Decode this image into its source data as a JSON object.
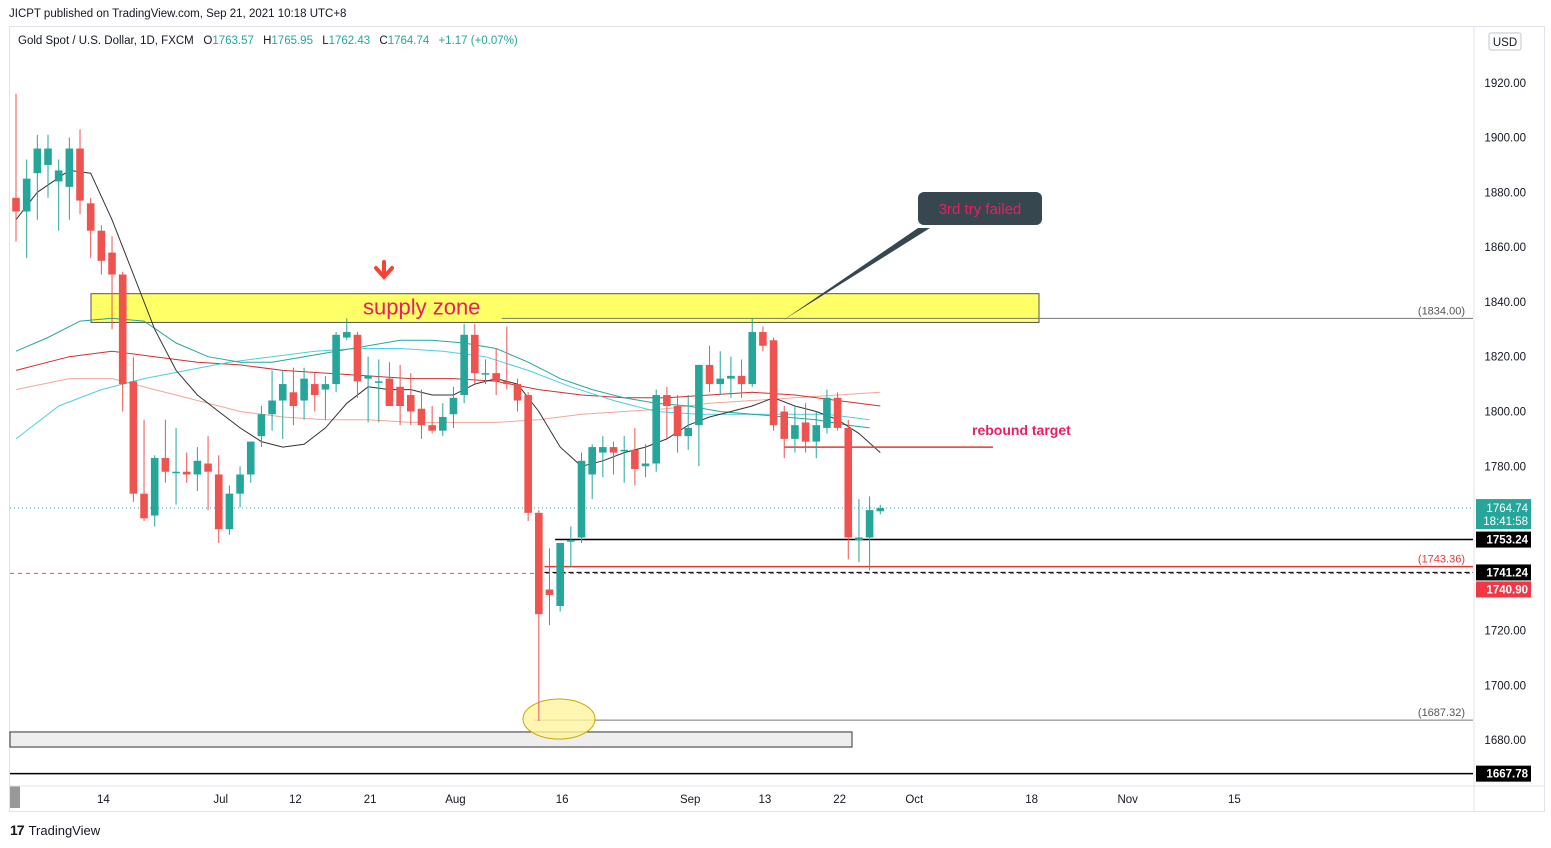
{
  "header": {
    "published": "JICPT published on TradingView.com, Sep 21, 2021 10:18 UTC+8"
  },
  "legend": {
    "symbol": "Gold Spot / U.S. Dollar, 1D, FXCM",
    "o_label": "O",
    "o": "1763.57",
    "h_label": "H",
    "h": "1765.95",
    "l_label": "L",
    "l": "1762.43",
    "c_label": "C",
    "c": "1764.74",
    "change": "+1.17 (+0.07%)"
  },
  "currency": "USD",
  "footer": {
    "brand": "TradingView",
    "logo": "17"
  },
  "colors": {
    "up": "#26a69a",
    "down": "#ef5350",
    "supply": "#ffff66",
    "callout": "#37474f",
    "callout_text": "#e91e63",
    "annotation": "#e91e63"
  },
  "annotations": {
    "supply_zone": "supply zone",
    "callout": "3rd try failed",
    "rebound": "rebound target"
  },
  "chart_data": {
    "type": "candlestick",
    "title": "Gold Spot / U.S. Dollar, 1D, FXCM",
    "ylim": [
      1664,
      1940
    ],
    "y_ticks": [
      1920,
      1900,
      1880,
      1860,
      1840,
      1820,
      1800,
      1780,
      1760,
      1740,
      1720,
      1700,
      1680
    ],
    "y_tick_labels": [
      "1920.00",
      "1900.00",
      "1880.00",
      "1860.00",
      "1840.00",
      "1820.00",
      "1800.00",
      "1780.00",
      "",
      "",
      "1720.00",
      "1700.00",
      "1680.00"
    ],
    "x_ticks": [
      {
        "label": "14",
        "i": 8
      },
      {
        "label": "Jul",
        "i": 19
      },
      {
        "label": "12",
        "i": 26
      },
      {
        "label": "21",
        "i": 33
      },
      {
        "label": "Aug",
        "i": 41
      },
      {
        "label": "16",
        "i": 51
      },
      {
        "label": "Sep",
        "i": 63
      },
      {
        "label": "13",
        "i": 70
      },
      {
        "label": "22",
        "i": 77
      },
      {
        "label": "Oct",
        "i": 84
      },
      {
        "label": "18",
        "i": 95
      },
      {
        "label": "Nov",
        "i": 104
      },
      {
        "label": "15",
        "i": 114
      }
    ],
    "candles": [
      {
        "o": 1878,
        "h": 1916,
        "l": 1862,
        "c": 1873
      },
      {
        "o": 1873,
        "h": 1892,
        "l": 1856,
        "c": 1885
      },
      {
        "o": 1887,
        "h": 1901,
        "l": 1870,
        "c": 1896
      },
      {
        "o": 1890,
        "h": 1901,
        "l": 1878,
        "c": 1896
      },
      {
        "o": 1884,
        "h": 1892,
        "l": 1866,
        "c": 1888
      },
      {
        "o": 1882,
        "h": 1900,
        "l": 1870,
        "c": 1896
      },
      {
        "o": 1896,
        "h": 1903,
        "l": 1872,
        "c": 1877
      },
      {
        "o": 1876,
        "h": 1878,
        "l": 1856,
        "c": 1866
      },
      {
        "o": 1866,
        "h": 1868,
        "l": 1850,
        "c": 1855
      },
      {
        "o": 1858,
        "h": 1864,
        "l": 1830,
        "c": 1850
      },
      {
        "o": 1850,
        "h": 1851,
        "l": 1800,
        "c": 1810
      },
      {
        "o": 1811,
        "h": 1820,
        "l": 1767,
        "c": 1770
      },
      {
        "o": 1770,
        "h": 1797,
        "l": 1760,
        "c": 1761
      },
      {
        "o": 1762,
        "h": 1784,
        "l": 1758,
        "c": 1783
      },
      {
        "o": 1783,
        "h": 1797,
        "l": 1774,
        "c": 1778
      },
      {
        "o": 1778,
        "h": 1794,
        "l": 1766,
        "c": 1778
      },
      {
        "o": 1778,
        "h": 1785,
        "l": 1774,
        "c": 1777
      },
      {
        "o": 1777,
        "h": 1787,
        "l": 1771,
        "c": 1782
      },
      {
        "o": 1781,
        "h": 1791,
        "l": 1764,
        "c": 1778
      },
      {
        "o": 1777,
        "h": 1784,
        "l": 1752,
        "c": 1757
      },
      {
        "o": 1757,
        "h": 1773,
        "l": 1755,
        "c": 1770
      },
      {
        "o": 1770,
        "h": 1780,
        "l": 1765,
        "c": 1777
      },
      {
        "o": 1777,
        "h": 1789,
        "l": 1774,
        "c": 1789
      },
      {
        "o": 1791,
        "h": 1802,
        "l": 1787,
        "c": 1799
      },
      {
        "o": 1799,
        "h": 1815,
        "l": 1793,
        "c": 1804
      },
      {
        "o": 1804,
        "h": 1815,
        "l": 1790,
        "c": 1810
      },
      {
        "o": 1807,
        "h": 1816,
        "l": 1795,
        "c": 1802
      },
      {
        "o": 1804,
        "h": 1816,
        "l": 1797,
        "c": 1812
      },
      {
        "o": 1810,
        "h": 1814,
        "l": 1800,
        "c": 1806
      },
      {
        "o": 1808,
        "h": 1813,
        "l": 1797,
        "c": 1810
      },
      {
        "o": 1810,
        "h": 1829,
        "l": 1807,
        "c": 1828
      },
      {
        "o": 1827,
        "h": 1834,
        "l": 1826,
        "c": 1829
      },
      {
        "o": 1828,
        "h": 1829,
        "l": 1805,
        "c": 1811
      },
      {
        "o": 1812,
        "h": 1820,
        "l": 1796,
        "c": 1813
      },
      {
        "o": 1811,
        "h": 1819,
        "l": 1796,
        "c": 1811
      },
      {
        "o": 1812,
        "h": 1818,
        "l": 1804,
        "c": 1802
      },
      {
        "o": 1809,
        "h": 1817,
        "l": 1795,
        "c": 1802
      },
      {
        "o": 1806,
        "h": 1814,
        "l": 1795,
        "c": 1800
      },
      {
        "o": 1801,
        "h": 1808,
        "l": 1790,
        "c": 1795
      },
      {
        "o": 1795,
        "h": 1802,
        "l": 1792,
        "c": 1793
      },
      {
        "o": 1793,
        "h": 1803,
        "l": 1791,
        "c": 1798
      },
      {
        "o": 1799,
        "h": 1809,
        "l": 1794,
        "c": 1805
      },
      {
        "o": 1806,
        "h": 1832,
        "l": 1803,
        "c": 1828
      },
      {
        "o": 1828,
        "h": 1832,
        "l": 1810,
        "c": 1814
      },
      {
        "o": 1814,
        "h": 1819,
        "l": 1810,
        "c": 1814
      },
      {
        "o": 1814,
        "h": 1823,
        "l": 1806,
        "c": 1811
      },
      {
        "o": 1811,
        "h": 1831,
        "l": 1808,
        "c": 1810
      },
      {
        "o": 1810,
        "h": 1812,
        "l": 1800,
        "c": 1804
      },
      {
        "o": 1806,
        "h": 1807,
        "l": 1760,
        "c": 1763
      },
      {
        "o": 1763,
        "h": 1764,
        "l": 1687,
        "c": 1726
      },
      {
        "o": 1735,
        "h": 1750,
        "l": 1722,
        "c": 1733
      },
      {
        "o": 1729,
        "h": 1752,
        "l": 1727,
        "c": 1752
      },
      {
        "o": 1753,
        "h": 1758,
        "l": 1743,
        "c": 1753
      },
      {
        "o": 1754,
        "h": 1785,
        "l": 1752,
        "c": 1782
      },
      {
        "o": 1777,
        "h": 1788,
        "l": 1768,
        "c": 1787
      },
      {
        "o": 1785,
        "h": 1791,
        "l": 1776,
        "c": 1787
      },
      {
        "o": 1787,
        "h": 1789,
        "l": 1777,
        "c": 1785
      },
      {
        "o": 1786,
        "h": 1791,
        "l": 1774,
        "c": 1786
      },
      {
        "o": 1786,
        "h": 1794,
        "l": 1773,
        "c": 1779
      },
      {
        "o": 1780,
        "h": 1788,
        "l": 1776,
        "c": 1781
      },
      {
        "o": 1781,
        "h": 1808,
        "l": 1778,
        "c": 1806
      },
      {
        "o": 1806,
        "h": 1809,
        "l": 1790,
        "c": 1802
      },
      {
        "o": 1802,
        "h": 1806,
        "l": 1785,
        "c": 1791
      },
      {
        "o": 1791,
        "h": 1806,
        "l": 1786,
        "c": 1794
      },
      {
        "o": 1795,
        "h": 1817,
        "l": 1780,
        "c": 1817
      },
      {
        "o": 1817,
        "h": 1824,
        "l": 1807,
        "c": 1810
      },
      {
        "o": 1810,
        "h": 1822,
        "l": 1806,
        "c": 1812
      },
      {
        "o": 1812,
        "h": 1820,
        "l": 1805,
        "c": 1813
      },
      {
        "o": 1813,
        "h": 1819,
        "l": 1805,
        "c": 1810
      },
      {
        "o": 1810,
        "h": 1834,
        "l": 1809,
        "c": 1829
      },
      {
        "o": 1829,
        "h": 1831,
        "l": 1822,
        "c": 1824
      },
      {
        "o": 1826,
        "h": 1827,
        "l": 1793,
        "c": 1795
      },
      {
        "o": 1800,
        "h": 1802,
        "l": 1783,
        "c": 1790
      },
      {
        "o": 1790,
        "h": 1802,
        "l": 1785,
        "c": 1795
      },
      {
        "o": 1796,
        "h": 1803,
        "l": 1785,
        "c": 1789
      },
      {
        "o": 1789,
        "h": 1800,
        "l": 1783,
        "c": 1795
      },
      {
        "o": 1794,
        "h": 1808,
        "l": 1792,
        "c": 1805
      },
      {
        "o": 1805,
        "h": 1807,
        "l": 1793,
        "c": 1794
      },
      {
        "o": 1794,
        "h": 1797,
        "l": 1746,
        "c": 1754
      },
      {
        "o": 1753,
        "h": 1768,
        "l": 1745,
        "c": 1754
      },
      {
        "o": 1754,
        "h": 1769,
        "l": 1742,
        "c": 1764
      },
      {
        "o": 1763.57,
        "h": 1765.95,
        "l": 1762.43,
        "c": 1764.74
      }
    ],
    "ma_black": [
      [
        0,
        1870
      ],
      [
        2,
        1880
      ],
      [
        5,
        1888
      ],
      [
        7,
        1887
      ],
      [
        9,
        1870
      ],
      [
        11,
        1850
      ],
      [
        13,
        1830
      ],
      [
        15,
        1815
      ],
      [
        17,
        1806
      ],
      [
        19,
        1800
      ],
      [
        21,
        1794
      ],
      [
        23,
        1789
      ],
      [
        25,
        1787
      ],
      [
        27,
        1788
      ],
      [
        29,
        1794
      ],
      [
        31,
        1803
      ],
      [
        33,
        1809
      ],
      [
        35,
        1808
      ],
      [
        37,
        1808
      ],
      [
        39,
        1806
      ],
      [
        41,
        1806
      ],
      [
        43,
        1810
      ],
      [
        45,
        1812
      ],
      [
        47,
        1810
      ],
      [
        49,
        1800
      ],
      [
        51,
        1787
      ],
      [
        53,
        1780
      ],
      [
        55,
        1782
      ],
      [
        57,
        1785
      ],
      [
        59,
        1787
      ],
      [
        61,
        1790
      ],
      [
        63,
        1795
      ],
      [
        65,
        1798
      ],
      [
        67,
        1800
      ],
      [
        69,
        1802
      ],
      [
        71,
        1805
      ],
      [
        73,
        1802
      ],
      [
        75,
        1800
      ],
      [
        77,
        1797
      ],
      [
        79,
        1792
      ],
      [
        81,
        1785
      ]
    ],
    "ma_teal": [
      [
        0,
        1822
      ],
      [
        3,
        1827
      ],
      [
        6,
        1833
      ],
      [
        9,
        1834
      ],
      [
        12,
        1833
      ],
      [
        15,
        1825
      ],
      [
        18,
        1820
      ],
      [
        21,
        1818
      ],
      [
        24,
        1818
      ],
      [
        27,
        1820
      ],
      [
        30,
        1822
      ],
      [
        33,
        1824
      ],
      [
        36,
        1826
      ],
      [
        39,
        1826
      ],
      [
        42,
        1825
      ],
      [
        45,
        1823
      ],
      [
        48,
        1818
      ],
      [
        51,
        1812
      ],
      [
        54,
        1808
      ],
      [
        57,
        1805
      ],
      [
        60,
        1803
      ],
      [
        63,
        1802
      ],
      [
        66,
        1800
      ],
      [
        69,
        1799
      ],
      [
        72,
        1798
      ],
      [
        75,
        1797
      ],
      [
        78,
        1795
      ],
      [
        80,
        1794
      ]
    ],
    "ma_red": [
      [
        0,
        1815
      ],
      [
        5,
        1820
      ],
      [
        9,
        1822
      ],
      [
        13,
        1820
      ],
      [
        17,
        1818
      ],
      [
        21,
        1817
      ],
      [
        25,
        1815
      ],
      [
        29,
        1814
      ],
      [
        33,
        1813
      ],
      [
        37,
        1812
      ],
      [
        41,
        1812
      ],
      [
        45,
        1811
      ],
      [
        49,
        1808
      ],
      [
        53,
        1806
      ],
      [
        57,
        1805
      ],
      [
        61,
        1805
      ],
      [
        65,
        1806
      ],
      [
        69,
        1807
      ],
      [
        73,
        1806
      ],
      [
        77,
        1804
      ],
      [
        81,
        1802
      ]
    ],
    "ma_salmon": [
      [
        0,
        1808
      ],
      [
        5,
        1812
      ],
      [
        9,
        1812
      ],
      [
        13,
        1808
      ],
      [
        17,
        1804
      ],
      [
        21,
        1800
      ],
      [
        25,
        1798
      ],
      [
        29,
        1797
      ],
      [
        33,
        1797
      ],
      [
        37,
        1796
      ],
      [
        41,
        1796
      ],
      [
        45,
        1796
      ],
      [
        49,
        1797
      ],
      [
        53,
        1799
      ],
      [
        57,
        1800
      ],
      [
        61,
        1801
      ],
      [
        65,
        1803
      ],
      [
        69,
        1804
      ],
      [
        73,
        1805
      ],
      [
        77,
        1806
      ],
      [
        81,
        1807
      ]
    ],
    "ma_lightteal": [
      [
        0,
        1790
      ],
      [
        4,
        1802
      ],
      [
        8,
        1808
      ],
      [
        12,
        1812
      ],
      [
        16,
        1815
      ],
      [
        20,
        1818
      ],
      [
        24,
        1820
      ],
      [
        28,
        1822
      ],
      [
        32,
        1823
      ],
      [
        36,
        1823
      ],
      [
        40,
        1822
      ],
      [
        44,
        1820
      ],
      [
        48,
        1815
      ],
      [
        52,
        1809
      ],
      [
        56,
        1804
      ],
      [
        60,
        1800
      ],
      [
        64,
        1799
      ],
      [
        68,
        1799
      ],
      [
        72,
        1799
      ],
      [
        76,
        1799
      ],
      [
        80,
        1797
      ]
    ],
    "supply_zone": {
      "from": 1832.5,
      "to": 1843
    },
    "levels": [
      {
        "price": 1834.0,
        "label": "(1834.00)",
        "style": "gray",
        "from_i": 46
      },
      {
        "price": 1753.24,
        "label": "1753.24",
        "style": "black",
        "from_i": 51
      },
      {
        "price": 1743.36,
        "label": "(1743.36)",
        "style": "red",
        "from_i": 50
      },
      {
        "price": 1741.24,
        "label": "1741.24",
        "style": "blackdash",
        "from_i": 50
      },
      {
        "price": 1740.9,
        "label": "1740.90",
        "style": "reddash",
        "from_i": 0
      },
      {
        "price": 1687.32,
        "label": "(1687.32)",
        "style": "gray",
        "from_i": 49
      },
      {
        "price": 1667.78,
        "label": "1667.78",
        "style": "black",
        "from_i": 0
      },
      {
        "price": 1764.74,
        "label": "1764.74",
        "style": "dotted",
        "from_i": 0
      }
    ],
    "last": {
      "price": "1764.74",
      "countdown": "18:41:58"
    },
    "rebound_line": {
      "price": 1787,
      "from_i": 72,
      "to_i": 91
    }
  }
}
